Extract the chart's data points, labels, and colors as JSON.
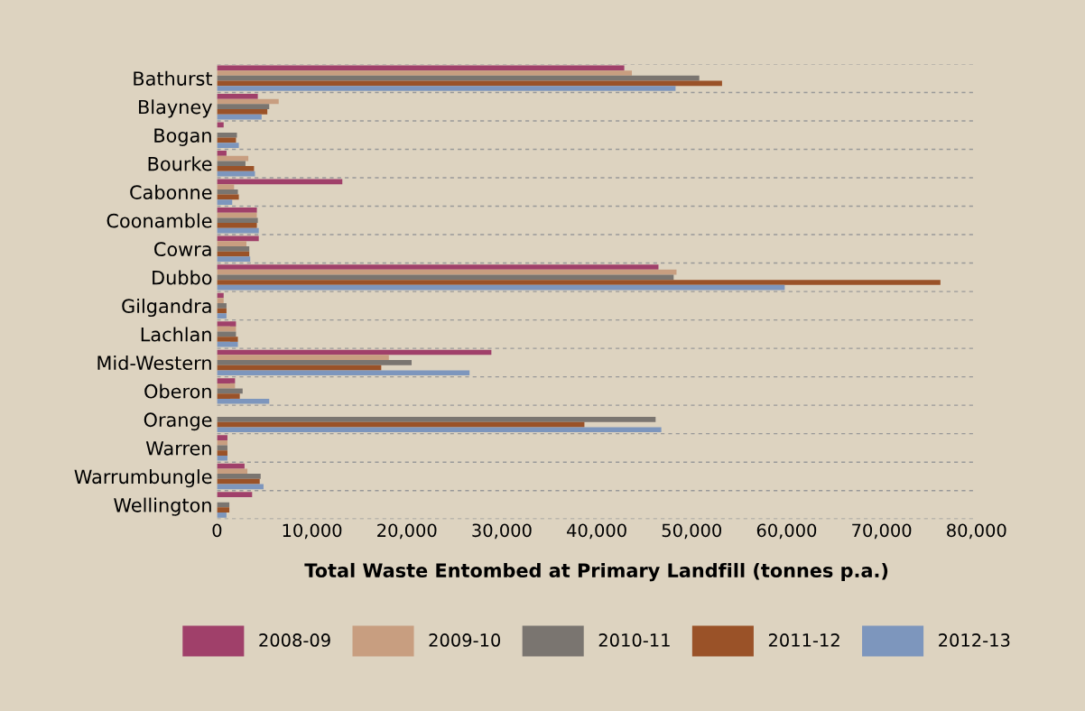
{
  "chart_data": {
    "type": "bar",
    "orientation": "horizontal",
    "xlabel": "Total Waste Entombed at Primary Landfill (tonnes p.a.)",
    "categories": [
      "Bathurst",
      "Blayney",
      "Bogan",
      "Bourke",
      "Cabonne",
      "Coonamble",
      "Cowra",
      "Dubbo",
      "Gilgandra",
      "Lachlan",
      "Mid-Western",
      "Oberon",
      "Orange",
      "Warren",
      "Warrumbungle",
      "Wellington"
    ],
    "series": [
      {
        "name": "2008-09",
        "color": "#a0406a",
        "values": [
          42900,
          4300,
          700,
          1000,
          13200,
          4200,
          4400,
          46500,
          700,
          2000,
          28900,
          1900,
          null,
          1100,
          2900,
          3700
        ]
      },
      {
        "name": "2009-10",
        "color": "#c89e80",
        "values": [
          43700,
          6500,
          null,
          3300,
          1800,
          4200,
          3100,
          48400,
          700,
          2000,
          18100,
          1900,
          null,
          1100,
          3200,
          null
        ]
      },
      {
        "name": "2010-11",
        "color": "#7a7570",
        "values": [
          50800,
          5500,
          2100,
          3000,
          2200,
          4300,
          3400,
          48100,
          1000,
          2000,
          20500,
          2700,
          46200,
          1100,
          4600,
          1300
        ]
      },
      {
        "name": "2011-12",
        "color": "#9a5228",
        "values": [
          53200,
          5300,
          2000,
          3900,
          2300,
          4200,
          3400,
          76200,
          1000,
          2200,
          17300,
          2400,
          38700,
          1100,
          4500,
          1300
        ]
      },
      {
        "name": "2012-13",
        "color": "#7d96bd",
        "values": [
          48300,
          4700,
          2300,
          4000,
          1600,
          4400,
          3500,
          59800,
          1000,
          2200,
          26600,
          5500,
          46800,
          1100,
          4900,
          1000
        ]
      }
    ],
    "xlim": [
      0,
      80000
    ],
    "xticks": [
      {
        "value": 0,
        "label": "0"
      },
      {
        "value": 10000,
        "label": "10,000"
      },
      {
        "value": 20000,
        "label": "20,000"
      },
      {
        "value": 30000,
        "label": "30,000"
      },
      {
        "value": 40000,
        "label": "40,000"
      },
      {
        "value": 50000,
        "label": "50,000"
      },
      {
        "value": 60000,
        "label": "60,000"
      },
      {
        "value": 70000,
        "label": "70,000"
      },
      {
        "value": 80000,
        "label": "80,000"
      }
    ],
    "grid": "y",
    "legend": "bottom"
  }
}
